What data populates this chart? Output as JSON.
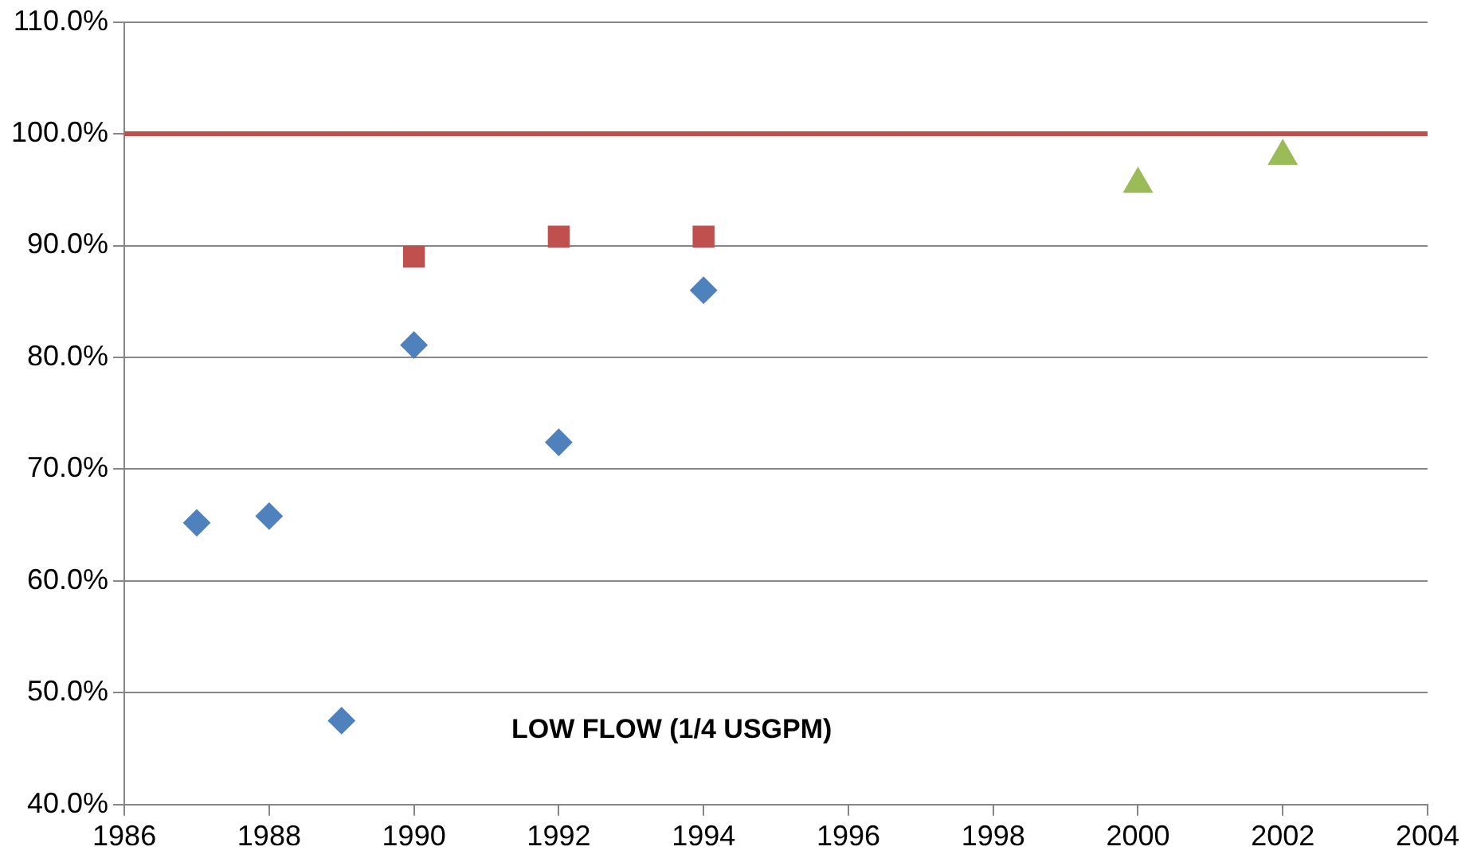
{
  "chart_data": {
    "type": "scatter",
    "annotations": [
      "LOW FLOW (1/4 USGPM)"
    ],
    "series": [
      {
        "color": "#4f81bd",
        "marker": "diamond",
        "x": [
          1987,
          1988,
          1989,
          1990,
          1992,
          1994
        ],
        "values": [
          65.2,
          65.8,
          47.5,
          81.1,
          72.4,
          86.0
        ]
      },
      {
        "color": "#c0504d",
        "marker": "square",
        "x": [
          1990,
          1992,
          1994
        ],
        "values": [
          89.0,
          90.8,
          90.8
        ]
      },
      {
        "color": "#9bbb59",
        "marker": "triangle",
        "x": [
          2000,
          2002
        ],
        "values": [
          95.5,
          98.0
        ]
      }
    ],
    "xlim": [
      1986,
      2004
    ],
    "xticks": [
      1986,
      1988,
      1990,
      1992,
      1994,
      1996,
      1998,
      2000,
      2002,
      2004
    ],
    "ylim": [
      40,
      110
    ],
    "yticks": [
      {
        "value": 40,
        "label": "40.0%"
      },
      {
        "value": 50,
        "label": "50.0%"
      },
      {
        "value": 60,
        "label": "60.0%"
      },
      {
        "value": 70,
        "label": "70.0%"
      },
      {
        "value": 80,
        "label": "80.0%"
      },
      {
        "value": 90,
        "label": "90.0%"
      },
      {
        "value": 100,
        "label": "100.0%"
      },
      {
        "value": 110,
        "label": "110.0%"
      }
    ],
    "ref_lines": [
      {
        "axis": "y",
        "value": 100,
        "color": "#c0504d"
      }
    ],
    "grid": "y",
    "legend": false
  }
}
